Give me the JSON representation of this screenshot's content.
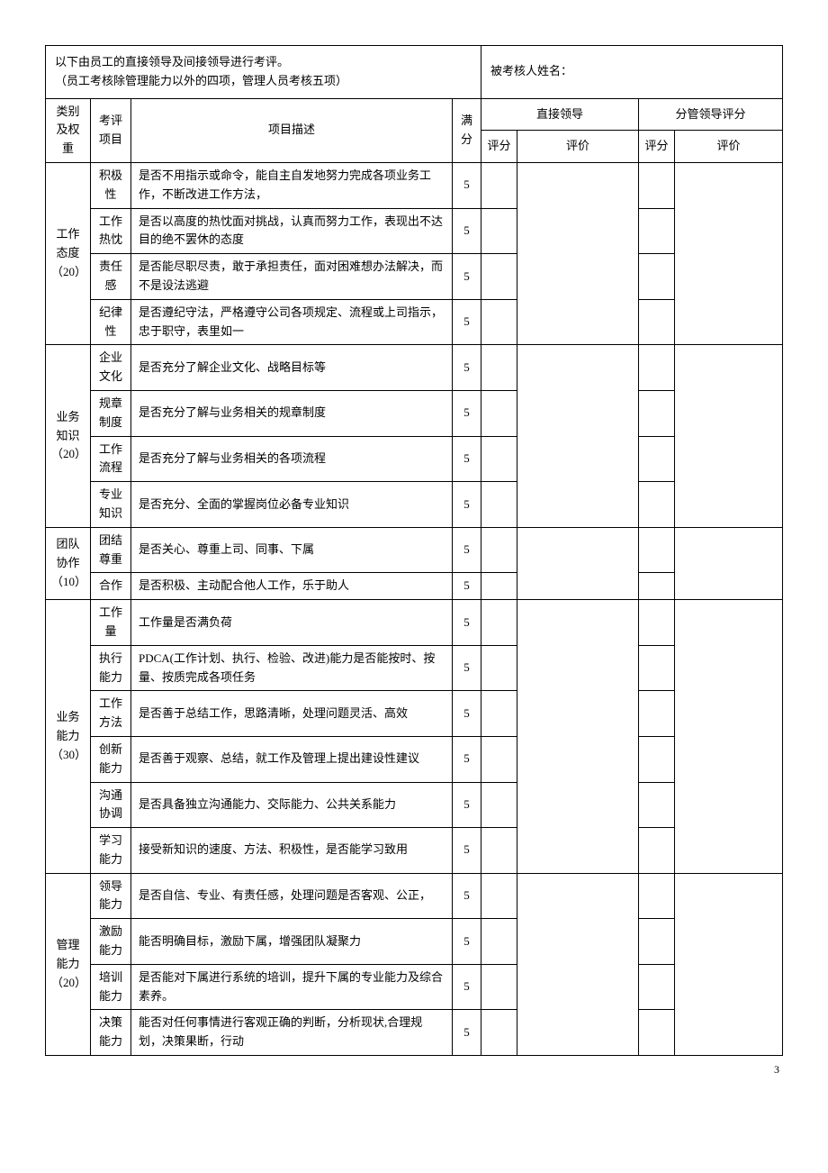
{
  "header": {
    "left_line1": "以下由员工的直接领导及间接领导进行考评。",
    "left_line2": "（员工考核除管理能力以外的四项，管理人员考核五项）",
    "right": "被考核人姓名："
  },
  "columns": {
    "category": "类别及权重",
    "item": "考评项目",
    "desc": "项目描述",
    "full": "满分",
    "direct_leader": "直接领导",
    "supervisor": "分管领导评分",
    "score": "评分",
    "eval": "评价"
  },
  "categories": [
    {
      "name": "工作态度（20）",
      "rows": [
        {
          "item": "积极性",
          "desc": "是否不用指示或命令，能自主自发地努力完成各项业务工作，不断改进工作方法，",
          "full": "5"
        },
        {
          "item": "工作热忱",
          "desc": "是否以高度的热忱面对挑战，认真而努力工作，表现出不达目的绝不罢休的态度",
          "full": "5"
        },
        {
          "item": "责任感",
          "desc": "是否能尽职尽责，敢于承担责任，面对困难想办法解决，而不是设法逃避",
          "full": "5"
        },
        {
          "item": "纪律性",
          "desc": "是否遵纪守法，严格遵守公司各项规定、流程或上司指示，忠于职守，表里如一",
          "full": "5"
        }
      ]
    },
    {
      "name": "业务知识（20）",
      "rows": [
        {
          "item": "企业文化",
          "desc": "是否充分了解企业文化、战略目标等",
          "full": "5"
        },
        {
          "item": "规章制度",
          "desc": "是否充分了解与业务相关的规章制度",
          "full": "5"
        },
        {
          "item": "工作流程",
          "desc": "是否充分了解与业务相关的各项流程",
          "full": "5"
        },
        {
          "item": "专业知识",
          "desc": "是否充分、全面的掌握岗位必备专业知识",
          "full": "5"
        }
      ]
    },
    {
      "name": "团队协作（10）",
      "rows": [
        {
          "item": "团结尊重",
          "desc": "是否关心、尊重上司、同事、下属",
          "full": "5"
        },
        {
          "item": "合作",
          "desc": "是否积极、主动配合他人工作，乐于助人",
          "full": "5"
        }
      ]
    },
    {
      "name": "业务能力（30）",
      "rows": [
        {
          "item": "工作量",
          "desc": "工作量是否满负荷",
          "full": "5"
        },
        {
          "item": "执行能力",
          "desc": "PDCA(工作计划、执行、检验、改进)能力是否能按时、按量、按质完成各项任务",
          "full": "5"
        },
        {
          "item": "工作方法",
          "desc": "是否善于总结工作，思路清晰，处理问题灵活、高效",
          "full": "5"
        },
        {
          "item": "创新能力",
          "desc": "是否善于观察、总结，就工作及管理上提出建设性建议",
          "full": "5"
        },
        {
          "item": "沟通协调",
          "desc": "是否具备独立沟通能力、交际能力、公共关系能力",
          "full": "5"
        },
        {
          "item": "学习能力",
          "desc": "接受新知识的速度、方法、积极性，是否能学习致用",
          "full": "5"
        }
      ]
    },
    {
      "name": "管理能力（20）",
      "rows": [
        {
          "item": "领导能力",
          "desc": "是否自信、专业、有责任感，处理问题是否客观、公正，",
          "full": "5"
        },
        {
          "item": "激励能力",
          "desc": "能否明确目标，激励下属，增强团队凝聚力",
          "full": "5"
        },
        {
          "item": "培训能力",
          "desc": "是否能对下属进行系统的培训，提升下属的专业能力及综合素养。",
          "full": "5"
        },
        {
          "item": "决策能力",
          "desc": "能否对任何事情进行客观正确的判断，分析现状,合理规划，决策果断，行动",
          "full": "5"
        }
      ]
    }
  ],
  "page_number": "3"
}
